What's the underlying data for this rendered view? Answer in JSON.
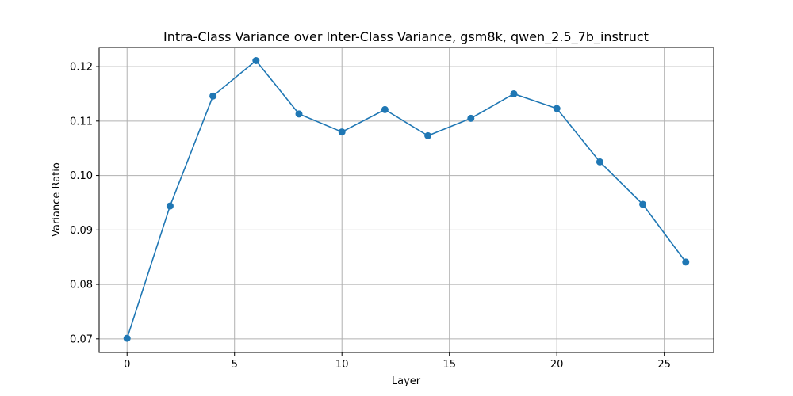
{
  "chart_data": {
    "type": "line",
    "title": "Intra-Class Variance over Inter-Class Variance, gsm8k, qwen_2.5_7b_instruct",
    "xlabel": "Layer",
    "ylabel": "Variance Ratio",
    "xlim": [
      -1.3,
      27.3
    ],
    "ylim": [
      0.0675,
      0.1235
    ],
    "x_ticks": [
      0,
      5,
      10,
      15,
      20,
      25
    ],
    "x_tick_labels": [
      "0",
      "5",
      "10",
      "15",
      "20",
      "25"
    ],
    "y_ticks": [
      0.07,
      0.08,
      0.09,
      0.1,
      0.11,
      0.12
    ],
    "y_tick_labels": [
      "0.07",
      "0.08",
      "0.09",
      "0.10",
      "0.11",
      "0.12"
    ],
    "grid": true,
    "series": [
      {
        "color": "#1f77b4",
        "marker": "circle",
        "x": [
          0,
          2,
          4,
          6,
          8,
          10,
          12,
          14,
          16,
          18,
          20,
          22,
          24,
          26
        ],
        "y": [
          0.0701,
          0.0944,
          0.1146,
          0.1211,
          0.1113,
          0.108,
          0.1121,
          0.1073,
          0.1105,
          0.115,
          0.1123,
          0.1025,
          0.0947,
          0.0841
        ]
      }
    ]
  }
}
